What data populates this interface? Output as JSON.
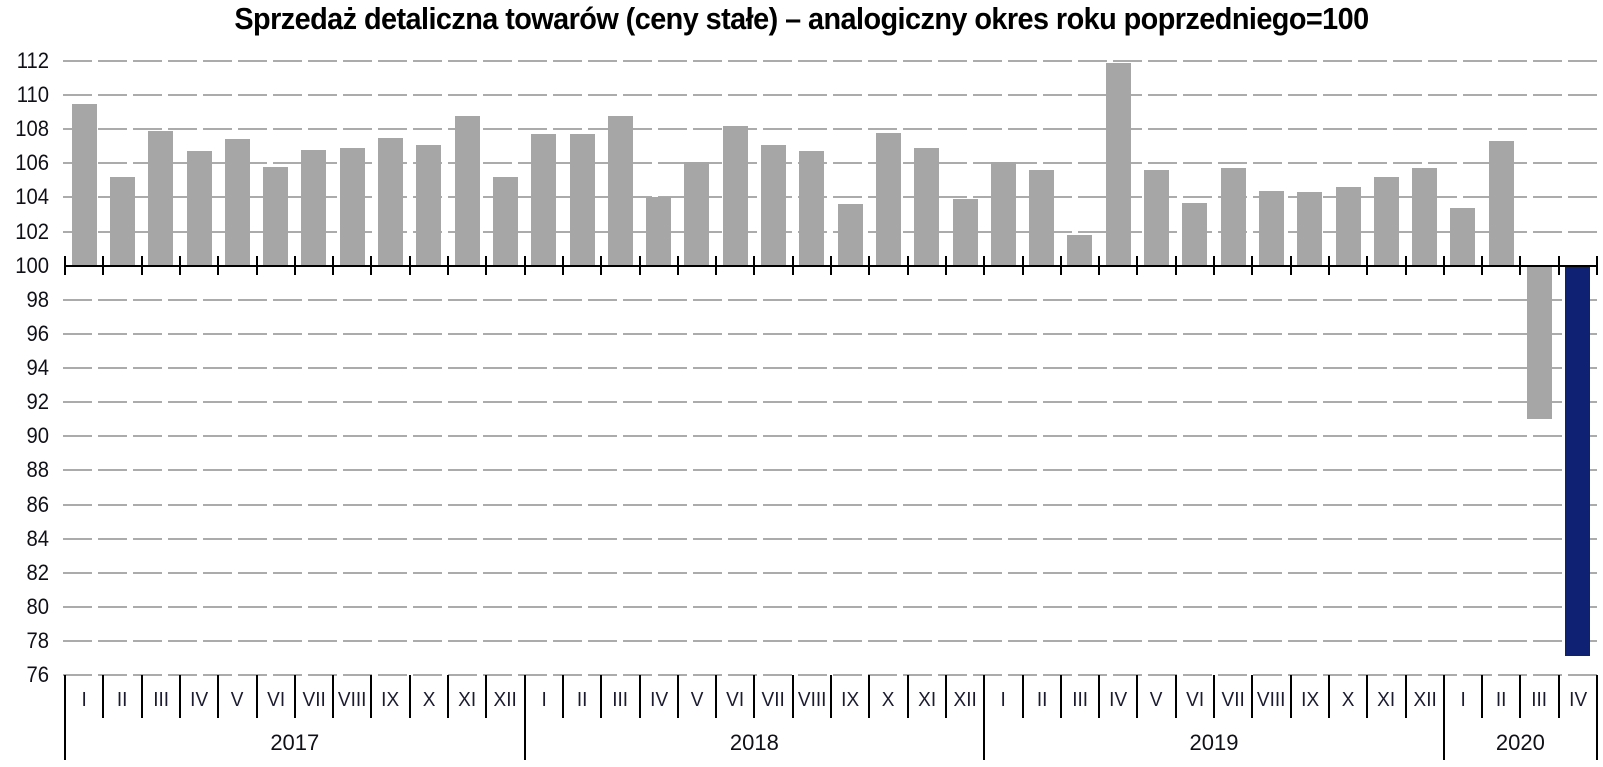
{
  "chart_data": {
    "type": "bar",
    "title": "Sprzedaż detaliczna towarów (ceny stałe) – analogiczny okres roku poprzedniego=100",
    "ylim": [
      76,
      112
    ],
    "ytick_step": 2,
    "yticks": [
      112,
      110,
      108,
      106,
      104,
      102,
      100,
      98,
      96,
      94,
      92,
      90,
      88,
      86,
      84,
      82,
      80,
      78,
      76
    ],
    "baseline_value": 100,
    "grid": true,
    "legend_position": "none",
    "xlabel": "",
    "ylabel": "",
    "bar_color": "#a6a6a6",
    "highlight_color": "#0e2173",
    "highlight_category": "2020 IV",
    "groups": [
      {
        "year": "2017",
        "months": [
          "I",
          "II",
          "III",
          "IV",
          "V",
          "VI",
          "VII",
          "VIII",
          "IX",
          "X",
          "XI",
          "XII"
        ],
        "values": [
          109.5,
          105.2,
          107.9,
          106.7,
          107.4,
          105.8,
          106.8,
          106.9,
          107.5,
          107.1,
          108.8,
          105.2
        ]
      },
      {
        "year": "2018",
        "months": [
          "I",
          "II",
          "III",
          "IV",
          "V",
          "VI",
          "VII",
          "VIII",
          "IX",
          "X",
          "XI",
          "XII"
        ],
        "values": [
          107.7,
          107.7,
          108.8,
          104.0,
          106.1,
          108.2,
          107.1,
          106.7,
          103.6,
          107.8,
          106.9,
          103.9
        ]
      },
      {
        "year": "2019",
        "months": [
          "I",
          "II",
          "III",
          "IV",
          "V",
          "VI",
          "VII",
          "VIII",
          "IX",
          "X",
          "XI",
          "XII"
        ],
        "values": [
          106.1,
          105.6,
          101.8,
          111.9,
          105.6,
          103.7,
          105.7,
          104.4,
          104.3,
          104.6,
          105.2,
          105.7
        ]
      },
      {
        "year": "2020",
        "months": [
          "I",
          "II",
          "III",
          "IV"
        ],
        "values": [
          103.4,
          107.3,
          91.0,
          77.1
        ]
      }
    ]
  }
}
